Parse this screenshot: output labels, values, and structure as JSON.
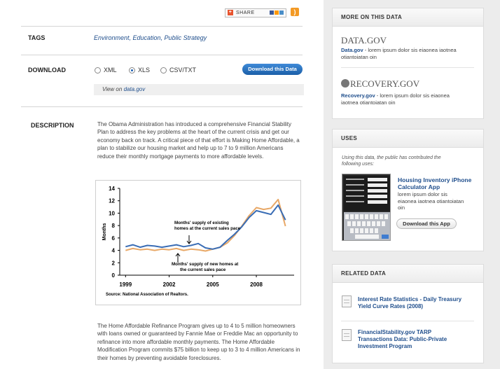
{
  "share": {
    "label": "SHARE"
  },
  "tags": {
    "label": "TAGS",
    "value": "Environment, Education, Public Strategy"
  },
  "download": {
    "label": "DOWNLOAD",
    "options": [
      {
        "label": "XML",
        "selected": false
      },
      {
        "label": "XLS",
        "selected": true
      },
      {
        "label": "CSV/TXT",
        "selected": false
      }
    ],
    "button_label": "Download this Data",
    "view_on_prefix": "View on",
    "view_on_link": "data.gov"
  },
  "description": {
    "label": "DESCRIPTION",
    "text": "The Obama Administration has introduced a comprehensive Financial Stability Plan to address the key problems at the heart of the current crisis and get our economy back on track. A critical piece of that effort is Making Home Affordable, a plan to stabilize our housing market and help up to 7 to 9 million Americans reduce their monthly mortgage payments to more affordable levels.",
    "text2": "The Home Affordable Refinance Program gives up to 4 to 5 million homeowners with loans owned or guaranteed by Fannie Mae or Freddie Mac an opportunity to refinance into more affordable monthly payments. The Home Affordable Modification Program commits $75 billion to keep up to 3 to 4 million Americans in their homes by preventing avoidable foreclosures."
  },
  "chart_data": {
    "type": "line",
    "title": "",
    "xlabel": "",
    "ylabel": "Months",
    "ylim": [
      0,
      14
    ],
    "xlim": [
      1998.6,
      2010.6
    ],
    "y_ticks": [
      0,
      2,
      4,
      6,
      8,
      10,
      12,
      14
    ],
    "x_ticks": [
      1999,
      2002,
      2005,
      2008
    ],
    "grid": false,
    "annotations": [
      "Months' supply of existing homes at the current sales pace",
      "Months' supply of new homes at the current sales pace"
    ],
    "source": "Source: National Association of Realtors.",
    "series": [
      {
        "color": "#3a6db5",
        "x": [
          1999,
          1999.5,
          2000,
          2000.5,
          2001,
          2001.5,
          2002,
          2002.5,
          2003,
          2003.5,
          2004,
          2004.5,
          2005,
          2005.5,
          2006,
          2006.5,
          2007,
          2007.5,
          2008,
          2008.5,
          2009,
          2009.5,
          2010
        ],
        "y": [
          4.6,
          4.9,
          4.5,
          4.8,
          4.7,
          4.5,
          4.7,
          4.9,
          4.6,
          4.8,
          5.1,
          4.4,
          4.2,
          4.5,
          5.6,
          6.6,
          7.8,
          9.3,
          10.4,
          10.1,
          9.8,
          11.3,
          8.9
        ]
      },
      {
        "color": "#e8a867",
        "x": [
          1999,
          1999.5,
          2000,
          2000.5,
          2001,
          2001.5,
          2002,
          2002.5,
          2003,
          2003.5,
          2004,
          2004.5,
          2005,
          2005.5,
          2006,
          2006.5,
          2007,
          2007.5,
          2008,
          2008.5,
          2009,
          2009.5,
          2010
        ],
        "y": [
          4.0,
          4.3,
          4.1,
          4.2,
          4.0,
          4.2,
          4.1,
          4.3,
          4.0,
          4.2,
          4.1,
          3.9,
          4.2,
          4.5,
          5.2,
          6.4,
          7.9,
          9.6,
          10.9,
          10.6,
          10.8,
          12.2,
          7.9
        ]
      }
    ]
  },
  "sidebar": {
    "more": {
      "title": "MORE ON THIS DATA",
      "items": [
        {
          "logo": "DATA.GOV",
          "link": "Data.gov",
          "text": "- lorem ipsum dolor sis eiaonea iaotnea otiantoiatan oin"
        },
        {
          "logo": "RECOVERY.GOV",
          "link": "Recovery.gov",
          "text": "- lorem ipsum dolor sis eiaonea iaotnea otiantoiatan oin"
        }
      ]
    },
    "uses": {
      "title": "USES",
      "intro": "Using this data, the public has contributed the following uses:",
      "app_title": "Housing Inventory iPhone Calculator App",
      "app_text": "lorem ipsum dolor sis eiaonea iaotnea otiantoiatan oin",
      "app_button": "Download this App"
    },
    "related": {
      "title": "RELATED DATA",
      "items": [
        {
          "label": "Interest Rate Statistics - Daily Treasury Yield Curve Rates (2008)"
        },
        {
          "label": "FinancialStability.gov TARP Transactions Data: Public-Private Investment Program"
        }
      ]
    }
  }
}
